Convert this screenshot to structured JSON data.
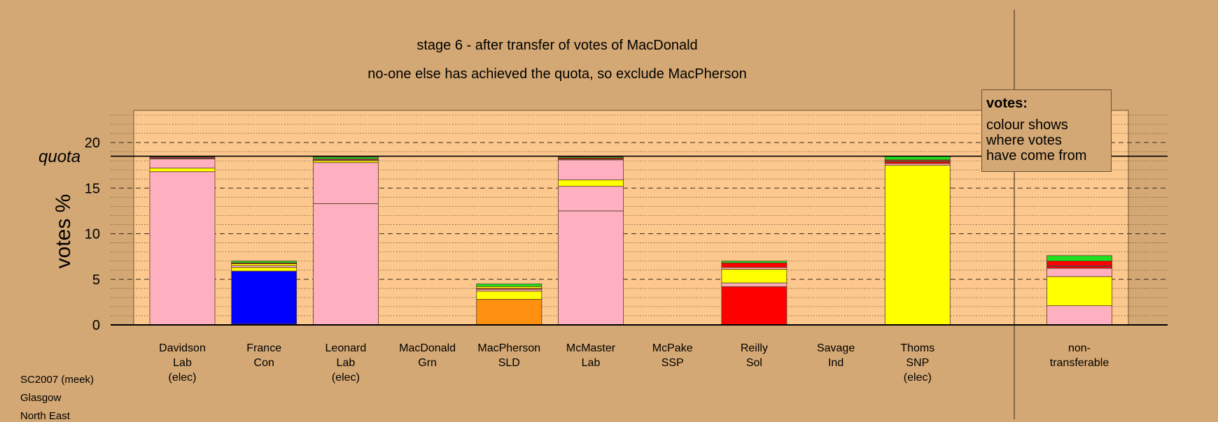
{
  "chart_data": {
    "type": "bar",
    "stacked": true,
    "title": "stage 6 - after transfer of votes of MacDonald",
    "subtitle": "no-one else has achieved the quota, so exclude MacPherson",
    "ylabel": "votes %",
    "ylim": [
      0,
      23
    ],
    "yticks": [
      0,
      5,
      10,
      15,
      20
    ],
    "quota": 18.5,
    "quota_label": "quota",
    "grid": true,
    "legend": {
      "title": "votes:",
      "lines": [
        "colour shows",
        "where votes",
        "have come from"
      ],
      "placement": "top-right"
    },
    "colors": {
      "background": "#d4a874",
      "plot_area": "#fcc88e",
      "Lab": "#ffb0c0",
      "Con": "#0000ff",
      "SNP": "#ffff00",
      "SLD": "#ff9010",
      "Sol": "#ff0000",
      "Grn": "#20e020",
      "SSP": "#ff1493",
      "Ind": "#b07040"
    },
    "candidates": [
      {
        "name": "Davidson",
        "party": "Lab",
        "status": "(elec)",
        "segments": [
          {
            "from": "Lab",
            "value": 16.8
          },
          {
            "from": "SNP",
            "value": 0.4
          },
          {
            "from": "Lab",
            "value": 1.0
          },
          {
            "from": "Ind",
            "value": 0.1
          },
          {
            "from": "SSP",
            "value": 0.1
          },
          {
            "from": "Grn",
            "value": 0.1
          }
        ]
      },
      {
        "name": "France",
        "party": "Con",
        "status": "",
        "segments": [
          {
            "from": "Lab",
            "value": 0.1
          },
          {
            "from": "Con",
            "value": 5.8
          },
          {
            "from": "SNP",
            "value": 0.4
          },
          {
            "from": "Lab",
            "value": 0.2
          },
          {
            "from": "SNP",
            "value": 0.2
          },
          {
            "from": "Sol",
            "value": 0.1
          },
          {
            "from": "Grn",
            "value": 0.2
          }
        ]
      },
      {
        "name": "Leonard",
        "party": "Lab",
        "status": "(elec)",
        "segments": [
          {
            "from": "Lab",
            "value": 13.3
          },
          {
            "from": "Lab",
            "value": 4.5
          },
          {
            "from": "SNP",
            "value": 0.2
          },
          {
            "from": "Ind",
            "value": 0.1
          },
          {
            "from": "SSP",
            "value": 0.1
          },
          {
            "from": "Grn",
            "value": 0.2
          }
        ]
      },
      {
        "name": "MacDonald",
        "party": "Grn",
        "status": "",
        "segments": []
      },
      {
        "name": "MacPherson",
        "party": "SLD",
        "status": "",
        "segments": [
          {
            "from": "SLD",
            "value": 2.8
          },
          {
            "from": "SNP",
            "value": 0.9
          },
          {
            "from": "Lab",
            "value": 0.2
          },
          {
            "from": "Sol",
            "value": 0.1
          },
          {
            "from": "SNP",
            "value": 0.2
          },
          {
            "from": "Grn",
            "value": 0.3
          }
        ]
      },
      {
        "name": "McMaster",
        "party": "Lab",
        "status": "",
        "segments": [
          {
            "from": "Lab",
            "value": 12.5
          },
          {
            "from": "Lab",
            "value": 2.7
          },
          {
            "from": "SNP",
            "value": 0.7
          },
          {
            "from": "Lab",
            "value": 2.2
          },
          {
            "from": "Ind",
            "value": 0.1
          },
          {
            "from": "Sol",
            "value": 0.1
          },
          {
            "from": "Grn",
            "value": 0.1
          }
        ]
      },
      {
        "name": "McPake",
        "party": "SSP",
        "status": "",
        "segments": []
      },
      {
        "name": "Reilly",
        "party": "Sol",
        "status": "",
        "segments": [
          {
            "from": "Sol",
            "value": 4.2
          },
          {
            "from": "Lab",
            "value": 0.4
          },
          {
            "from": "SNP",
            "value": 1.5
          },
          {
            "from": "Lab",
            "value": 0.2
          },
          {
            "from": "Sol",
            "value": 0.5
          },
          {
            "from": "Grn",
            "value": 0.2
          }
        ]
      },
      {
        "name": "Savage",
        "party": "Ind",
        "status": "",
        "segments": []
      },
      {
        "name": "Thoms",
        "party": "SNP",
        "status": "(elec)",
        "segments": [
          {
            "from": "SNP",
            "value": 17.5
          },
          {
            "from": "Lab",
            "value": 0.2
          },
          {
            "from": "Sol",
            "value": 0.2
          },
          {
            "from": "Ind",
            "value": 0.1
          },
          {
            "from": "Sol",
            "value": 0.1
          },
          {
            "from": "Grn",
            "value": 0.4
          }
        ]
      }
    ],
    "non_transferable": {
      "label": [
        "non-",
        "transferable"
      ],
      "segments": [
        {
          "from": "Lab",
          "value": 2.1
        },
        {
          "from": "SNP",
          "value": 3.2
        },
        {
          "from": "Lab",
          "value": 0.9
        },
        {
          "from": "Sol",
          "value": 0.2
        },
        {
          "from": "SSP",
          "value": 0.1
        },
        {
          "from": "Sol",
          "value": 0.5
        },
        {
          "from": "Grn",
          "value": 0.6
        }
      ]
    }
  },
  "footer": [
    "SC2007 (meek)",
    "Glasgow",
    "North East"
  ]
}
